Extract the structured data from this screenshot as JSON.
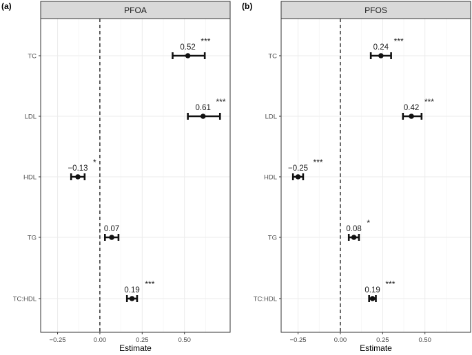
{
  "chart_data": [
    {
      "type": "forest",
      "panel_tag": "(a)",
      "title": "PFOA",
      "xlabel": "Estimate",
      "xlim": [
        -0.35,
        0.77
      ],
      "xticks": [
        -0.25,
        0.0,
        0.25,
        0.5
      ],
      "xtick_labels": [
        "−0.25",
        "0.00",
        "0.25",
        "0.50"
      ],
      "ref_line": 0,
      "categories": [
        "TC",
        "LDL",
        "HDL",
        "TG",
        "TC:HDL"
      ],
      "estimates": [
        0.52,
        0.61,
        -0.13,
        0.07,
        0.19
      ],
      "ci_lower": [
        0.43,
        0.52,
        -0.17,
        0.03,
        0.16
      ],
      "ci_upper": [
        0.62,
        0.71,
        -0.09,
        0.11,
        0.22
      ],
      "labels": [
        "0.52",
        "0.61",
        "−0.13",
        "0.07",
        "0.19"
      ],
      "significance": [
        "***",
        "***",
        "*",
        "",
        "***"
      ]
    },
    {
      "type": "forest",
      "panel_tag": "(b)",
      "title": "PFOS",
      "xlabel": "Estimate",
      "xlim": [
        -0.35,
        0.77
      ],
      "xticks": [
        -0.25,
        0.0,
        0.25,
        0.5
      ],
      "xtick_labels": [
        "−0.25",
        "0.00",
        "0.25",
        "0.50"
      ],
      "ref_line": 0,
      "categories": [
        "TC",
        "LDL",
        "HDL",
        "TG",
        "TC:HDL"
      ],
      "estimates": [
        0.24,
        0.42,
        -0.25,
        0.08,
        0.19
      ],
      "ci_lower": [
        0.18,
        0.37,
        -0.28,
        0.05,
        0.17
      ],
      "ci_upper": [
        0.3,
        0.48,
        -0.22,
        0.11,
        0.21
      ],
      "labels": [
        "0.24",
        "0.42",
        "−0.25",
        "0.08",
        "0.19"
      ],
      "significance": [
        "***",
        "***",
        "***",
        "*",
        "***"
      ]
    }
  ]
}
